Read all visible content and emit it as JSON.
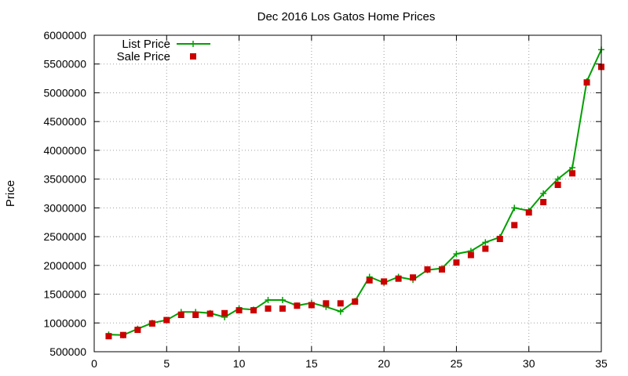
{
  "chart_data": {
    "type": "line",
    "title": "Dec 2016 Los Gatos Home Prices",
    "xlabel": "",
    "ylabel": "Price",
    "xlim": [
      0,
      35
    ],
    "ylim": [
      500000,
      6000000
    ],
    "xticks": [
      0,
      5,
      10,
      15,
      20,
      25,
      30,
      35
    ],
    "yticks": [
      500000,
      1000000,
      1500000,
      2000000,
      2500000,
      3000000,
      3500000,
      4000000,
      4500000,
      5000000,
      5500000,
      6000000
    ],
    "grid": true,
    "legend_position": "top-left",
    "x": [
      1,
      2,
      3,
      4,
      5,
      6,
      7,
      8,
      9,
      10,
      11,
      12,
      13,
      14,
      15,
      16,
      17,
      18,
      19,
      20,
      21,
      22,
      23,
      24,
      25,
      26,
      27,
      28,
      29,
      30,
      31,
      32,
      33,
      34,
      35
    ],
    "series": [
      {
        "name": "List Price",
        "style": "line-plus",
        "color": "#00a000",
        "values": [
          798000,
          788000,
          898000,
          1000000,
          1050000,
          1190000,
          1190000,
          1170000,
          1100000,
          1250000,
          1230000,
          1398000,
          1398000,
          1300000,
          1350000,
          1280000,
          1198000,
          1380000,
          1800000,
          1700000,
          1800000,
          1750000,
          1920000,
          1950000,
          2200000,
          2250000,
          2400000,
          2490000,
          3000000,
          2950000,
          3250000,
          3500000,
          3700000,
          5198000,
          5750000
        ]
      },
      {
        "name": "Sale Price",
        "style": "square",
        "color": "#cc0000",
        "values": [
          770000,
          790000,
          880000,
          990000,
          1050000,
          1140000,
          1140000,
          1160000,
          1170000,
          1220000,
          1220000,
          1250000,
          1250000,
          1300000,
          1310000,
          1340000,
          1340000,
          1370000,
          1740000,
          1720000,
          1770000,
          1790000,
          1930000,
          1930000,
          2050000,
          2180000,
          2290000,
          2460000,
          2700000,
          2920000,
          3100000,
          3400000,
          3600000,
          5180000,
          5450000
        ]
      }
    ]
  }
}
